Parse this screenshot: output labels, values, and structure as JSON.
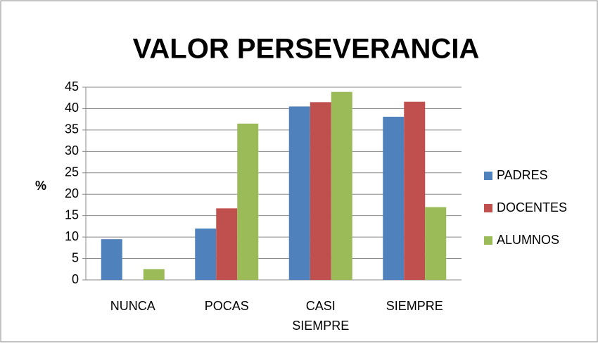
{
  "chart_data": {
    "type": "bar",
    "title": "VALOR PERSEVERANCIA",
    "ylabel": "%",
    "categories": [
      "NUNCA",
      "POCAS",
      "CASI SIEMPRE",
      "SIEMPRE"
    ],
    "series": [
      {
        "name": "PADRES",
        "color": "#4f81bd",
        "values": [
          9.5,
          12,
          40.5,
          38.1
        ]
      },
      {
        "name": "DOCENTES",
        "color": "#c0504d",
        "values": [
          0,
          16.7,
          41.5,
          41.6
        ]
      },
      {
        "name": "ALUMNOS",
        "color": "#9bbb59",
        "values": [
          2.5,
          36.5,
          43.9,
          17
        ]
      }
    ],
    "ylim": [
      0,
      45
    ],
    "yticks": [
      0,
      5,
      10,
      15,
      20,
      25,
      30,
      35,
      40,
      45
    ],
    "grid": true,
    "legend": "right"
  }
}
